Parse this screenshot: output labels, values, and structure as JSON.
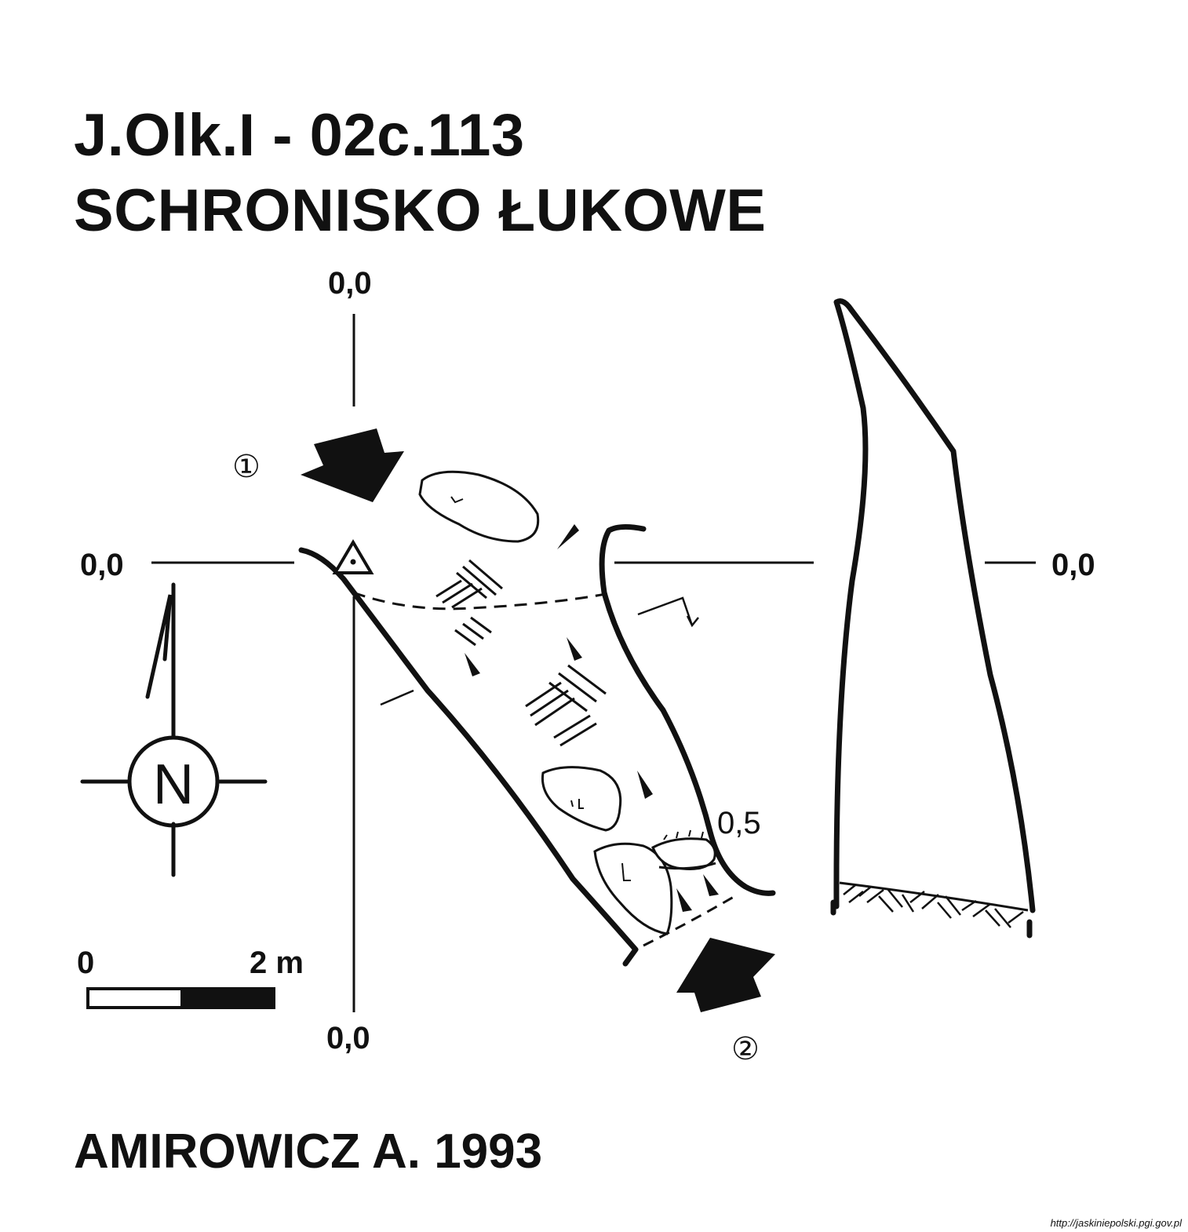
{
  "header": {
    "code": "J.Olk.I - 02c.113",
    "name": "SCHRONISKO ŁUKOWE"
  },
  "plan": {
    "datum_top": "0,0",
    "datum_bottom": "0,0",
    "datum_left": "0,0",
    "depth_label": "0,5",
    "entrance_1": "①",
    "entrance_2": "②"
  },
  "section": {
    "datum_right": "0,0"
  },
  "north_arrow": {
    "letter": "N"
  },
  "scale_bar": {
    "start": "0",
    "end": "2 m"
  },
  "credits": {
    "author": "AMIROWICZ A. 1993",
    "source_url": "http://jaskiniepolski.pgi.gov.pl"
  }
}
